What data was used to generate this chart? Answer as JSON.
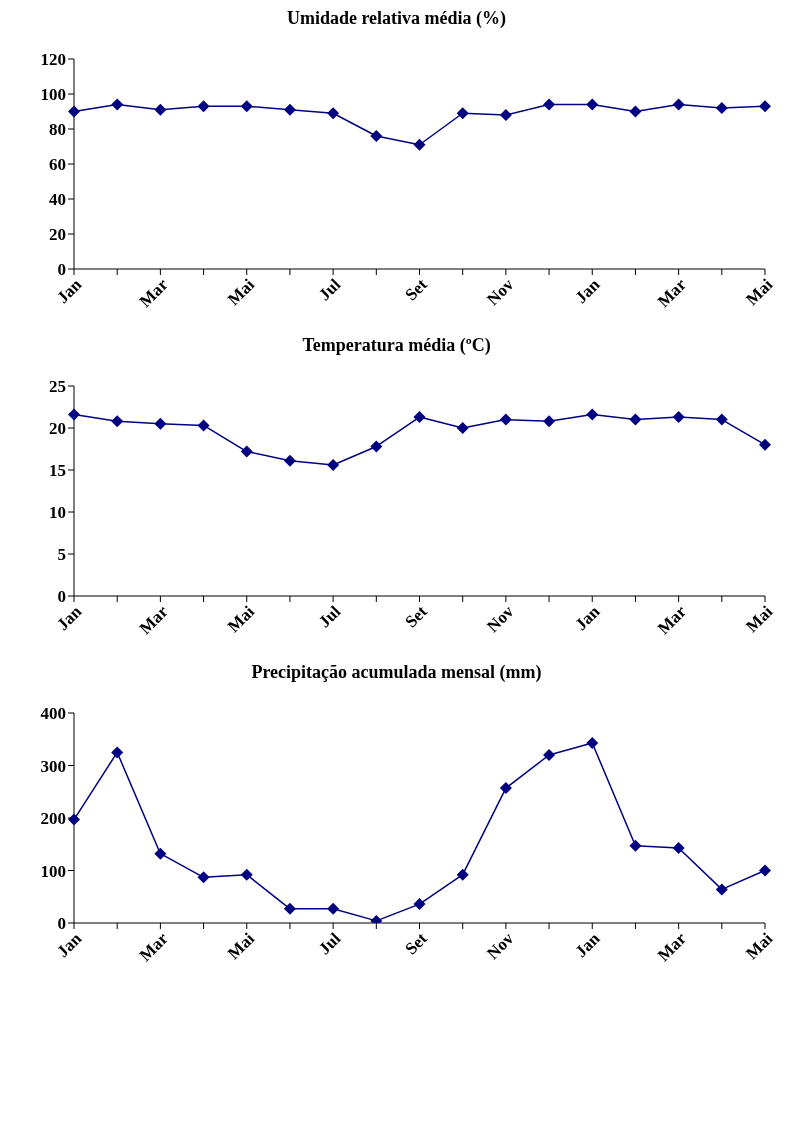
{
  "chart_data": [
    {
      "type": "line",
      "title": "Umidade relativa média (%)",
      "categories": [
        "Jan",
        null,
        "Mar",
        null,
        "Mai",
        null,
        "Jul",
        null,
        "Set",
        null,
        "Nov",
        null,
        "Jan",
        null,
        "Mar",
        null,
        "Mai"
      ],
      "series": [
        {
          "color": "#000080",
          "values": [
            90,
            94,
            91,
            93,
            93,
            91,
            89,
            76,
            71,
            89,
            88,
            94,
            94,
            90,
            94,
            92,
            93
          ]
        }
      ],
      "ylim": [
        0,
        120
      ],
      "yticks": [
        0,
        20,
        40,
        60,
        80,
        100,
        120
      ],
      "grid": false,
      "legend": false,
      "marker": "diamond",
      "line_style": "solid"
    },
    {
      "type": "line",
      "title": "Temperatura média (ºC)",
      "categories": [
        "Jan",
        null,
        "Mar",
        null,
        "Mai",
        null,
        "Jul",
        null,
        "Set",
        null,
        "Nov",
        null,
        "Jan",
        null,
        "Mar",
        null,
        "Mai"
      ],
      "series": [
        {
          "color": "#000080",
          "values": [
            21.6,
            20.8,
            20.5,
            20.3,
            17.2,
            16.1,
            15.6,
            17.8,
            21.3,
            20.0,
            21.0,
            20.8,
            21.6,
            21.0,
            21.3,
            21.0,
            18.0
          ]
        }
      ],
      "ylim": [
        0,
        25
      ],
      "yticks": [
        0,
        5,
        10,
        15,
        20,
        25
      ],
      "grid": false,
      "legend": false,
      "marker": "diamond",
      "line_style": "solid"
    },
    {
      "type": "line",
      "title": "Precipitação acumulada mensal (mm)",
      "categories": [
        "Jan",
        null,
        "Mar",
        null,
        "Mai",
        null,
        "Jul",
        null,
        "Set",
        null,
        "Nov",
        null,
        "Jan",
        null,
        "Mar",
        null,
        "Mai"
      ],
      "series": [
        {
          "color": "#000080",
          "values": [
            197,
            325,
            132,
            87,
            92,
            27,
            27,
            4,
            36,
            92,
            257,
            320,
            343,
            147,
            143,
            64,
            100
          ]
        }
      ],
      "ylim": [
        0,
        400
      ],
      "yticks": [
        0,
        100,
        200,
        300,
        400
      ],
      "grid": false,
      "legend": false,
      "marker": "diamond",
      "line_style": "solid"
    }
  ]
}
